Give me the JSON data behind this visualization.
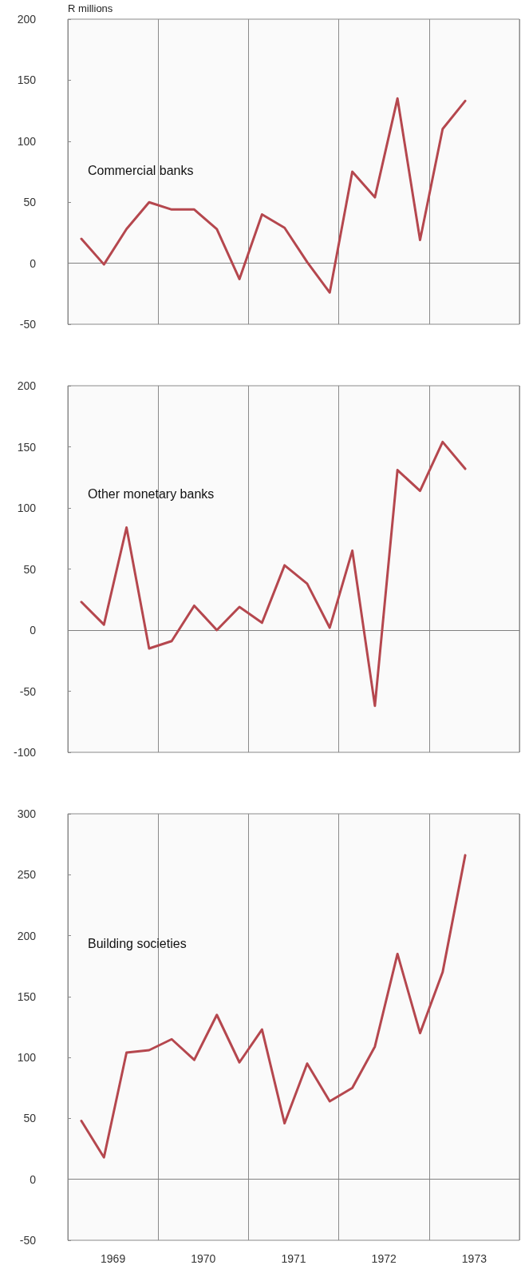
{
  "chart_data": [
    {
      "type": "line",
      "title": "Commercial banks",
      "ylabel": "R millions",
      "x": [
        1969.15,
        1969.4,
        1969.65,
        1969.9,
        1970.15,
        1970.4,
        1970.65,
        1970.9,
        1971.15,
        1971.4,
        1971.65,
        1971.9,
        1972.15,
        1972.4,
        1972.65,
        1972.9,
        1973.15,
        1973.4
      ],
      "series": [
        {
          "color": "#b5474e",
          "values": [
            20,
            -1,
            28,
            50,
            44,
            44,
            28,
            -13,
            40,
            29,
            1,
            -24,
            75,
            54,
            135,
            19,
            110,
            133
          ]
        }
      ],
      "xlim": [
        1969,
        1974
      ],
      "xticks": [
        {
          "value": 1969,
          "label": null
        },
        {
          "value": 1970,
          "label": null
        },
        {
          "value": 1971,
          "label": null
        },
        {
          "value": 1972,
          "label": null
        },
        {
          "value": 1973,
          "label": null
        },
        {
          "value": 1974,
          "label": null
        }
      ],
      "ylim": [
        -50,
        200
      ],
      "yticks": [
        -50,
        0,
        50,
        100,
        150,
        200
      ],
      "ref_lines": [
        {
          "axis": "y",
          "value": 0,
          "color": "#808080"
        }
      ],
      "grid": "x",
      "tick_labels": "y",
      "line_style": "solid",
      "marker": "none"
    },
    {
      "type": "line",
      "title": "Other monetary banks",
      "x": [
        1969.15,
        1969.4,
        1969.65,
        1969.9,
        1970.15,
        1970.4,
        1970.65,
        1970.9,
        1971.15,
        1971.4,
        1971.65,
        1971.9,
        1972.15,
        1972.4,
        1972.65,
        1972.9,
        1973.15,
        1973.4
      ],
      "series": [
        {
          "color": "#b5474e",
          "values": [
            23,
            4.5,
            84,
            -15,
            -9,
            20,
            0,
            19,
            6,
            53,
            38,
            2,
            65,
            -62,
            131,
            114,
            154,
            132
          ]
        }
      ],
      "xlim": [
        1969,
        1974
      ],
      "xticks": [
        {
          "value": 1969,
          "label": null
        },
        {
          "value": 1970,
          "label": null
        },
        {
          "value": 1971,
          "label": null
        },
        {
          "value": 1972,
          "label": null
        },
        {
          "value": 1973,
          "label": null
        },
        {
          "value": 1974,
          "label": null
        }
      ],
      "ylim": [
        -100,
        200
      ],
      "yticks": [
        -100,
        -50,
        0,
        50,
        100,
        150,
        200
      ],
      "ref_lines": [
        {
          "axis": "y",
          "value": 0,
          "color": "#808080"
        }
      ],
      "grid": "x",
      "tick_labels": "y",
      "line_style": "solid",
      "marker": "none"
    },
    {
      "type": "line",
      "title": "Building societies",
      "x": [
        1969.15,
        1969.4,
        1969.65,
        1969.9,
        1970.15,
        1970.4,
        1970.65,
        1970.9,
        1971.15,
        1971.4,
        1971.65,
        1971.9,
        1972.15,
        1972.4,
        1972.65,
        1972.9,
        1973.15,
        1973.4
      ],
      "series": [
        {
          "color": "#b5474e",
          "values": [
            48,
            18,
            104,
            106,
            115,
            98,
            135,
            96,
            123,
            46,
            95,
            64,
            75,
            109,
            185,
            120,
            170,
            266
          ]
        }
      ],
      "xlim": [
        1969,
        1974
      ],
      "xticks": [
        {
          "value": 1969,
          "label": null
        },
        {
          "value": 1969.5,
          "label": "1969"
        },
        {
          "value": 1970,
          "label": null
        },
        {
          "value": 1970.5,
          "label": "1970"
        },
        {
          "value": 1971,
          "label": null
        },
        {
          "value": 1971.5,
          "label": "1971"
        },
        {
          "value": 1972,
          "label": null
        },
        {
          "value": 1972.5,
          "label": "1972"
        },
        {
          "value": 1973,
          "label": null
        },
        {
          "value": 1973.5,
          "label": "1973"
        },
        {
          "value": 1974,
          "label": null
        }
      ],
      "ylim": [
        -50,
        300
      ],
      "yticks": [
        -50,
        0,
        50,
        100,
        150,
        200,
        250,
        300
      ],
      "ref_lines": [
        {
          "axis": "y",
          "value": 0,
          "color": "#808080"
        }
      ],
      "grid": "x",
      "line_style": "solid",
      "marker": "none"
    }
  ]
}
